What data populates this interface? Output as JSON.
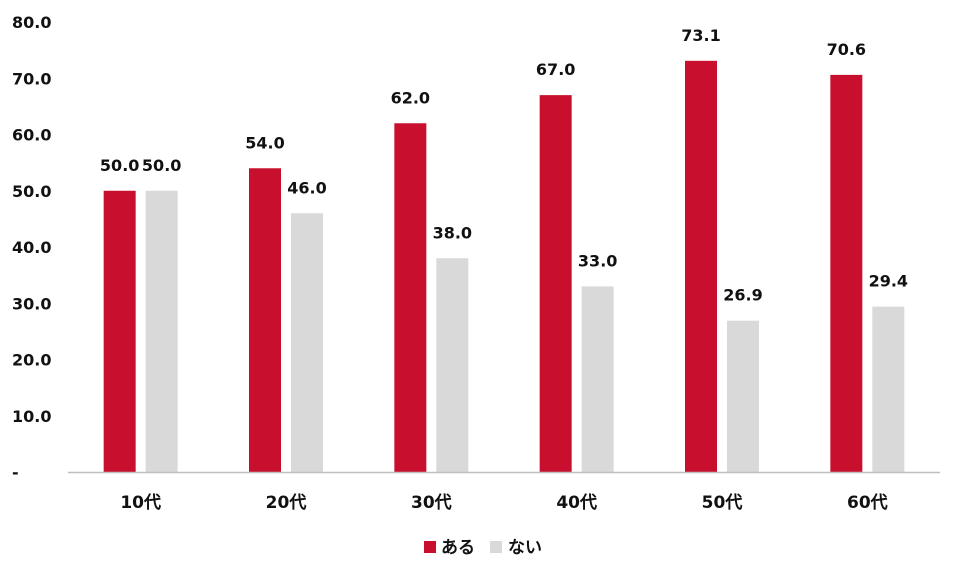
{
  "chart_data": {
    "type": "bar",
    "categories": [
      "10代",
      "20代",
      "30代",
      "40代",
      "50代",
      "60代"
    ],
    "series": [
      {
        "name": "ある",
        "color": "#C8102E",
        "values": [
          50.0,
          54.0,
          62.0,
          67.0,
          73.1,
          70.6
        ]
      },
      {
        "name": "ない",
        "color": "#D9D9D9",
        "values": [
          50.0,
          46.0,
          38.0,
          33.0,
          26.9,
          29.4
        ]
      }
    ],
    "ylim": [
      0,
      80
    ],
    "yticks": [
      0,
      10,
      20,
      30,
      40,
      50,
      60,
      70,
      80
    ],
    "ytick_labels": [
      "-",
      "10.0",
      "20.0",
      "30.0",
      "40.0",
      "50.0",
      "60.0",
      "70.0",
      "80.0"
    ],
    "grid": false,
    "legend_position": "bottom-center",
    "data_labels": true
  }
}
